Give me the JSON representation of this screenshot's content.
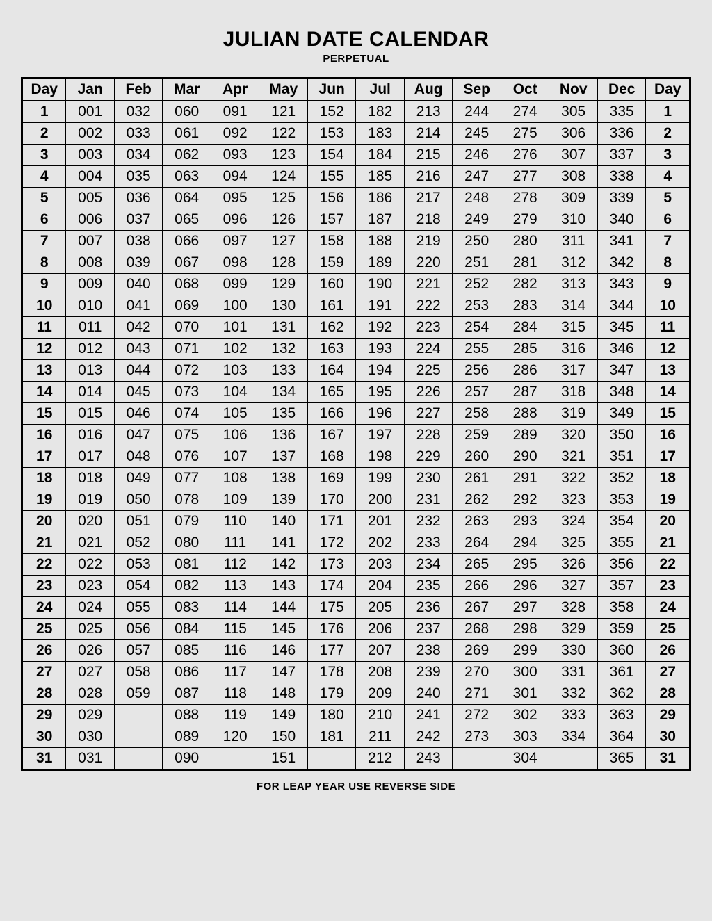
{
  "title": "JULIAN DATE CALENDAR",
  "subtitle": "PERPETUAL",
  "footnote": "FOR LEAP YEAR USE REVERSE SIDE",
  "table": {
    "day_header": "Day",
    "months": [
      "Jan",
      "Feb",
      "Mar",
      "Apr",
      "May",
      "Jun",
      "Jul",
      "Aug",
      "Sep",
      "Oct",
      "Nov",
      "Dec"
    ],
    "month_starts": [
      1,
      32,
      60,
      91,
      121,
      152,
      182,
      213,
      244,
      274,
      305,
      335
    ],
    "month_lengths": [
      31,
      28,
      31,
      30,
      31,
      30,
      31,
      31,
      30,
      31,
      30,
      31
    ],
    "num_days": 31,
    "pad_width": 3,
    "background_color": "#e6e6e6",
    "border_color": "#000000",
    "text_color": "#000000",
    "header_fontweight": 900,
    "cell_fontsize": 21
  }
}
